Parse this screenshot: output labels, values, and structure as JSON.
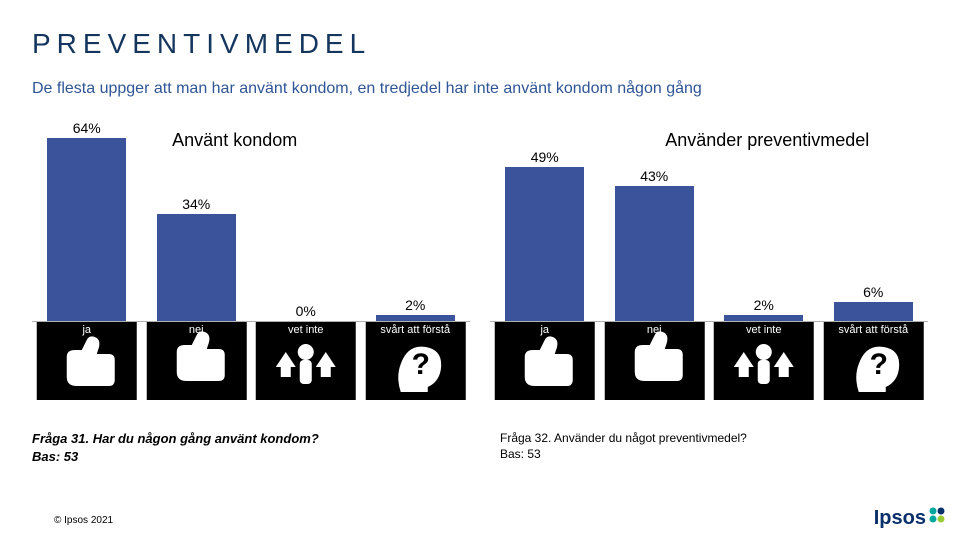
{
  "title_text": "PREVENTIVMEDEL",
  "title_color": "#14365e",
  "subtitle_text": "De flesta uppger att man har använt kondom, en tredjedel har inte använt kondom någon gång",
  "subtitle_color": "#2f5597",
  "baseline_color": "#b0b0b0",
  "chart_max_value": 64,
  "chart_left": {
    "title": "Använt kondom",
    "title_left_pct": 32,
    "type": "bar",
    "bar_color": "#3a539b",
    "categories": [
      "ja",
      "nej",
      "vet inte",
      "svårt att förstå"
    ],
    "values": [
      64,
      34,
      0,
      2
    ],
    "labels": [
      "64%",
      "34%",
      "0%",
      "2%"
    ]
  },
  "chart_right": {
    "title": "Använder preventivmedel",
    "title_left_pct": 40,
    "type": "bar",
    "bar_color": "#3a539b",
    "categories": [
      "ja",
      "nej",
      "vet inte",
      "svårt att förstå"
    ],
    "values": [
      49,
      43,
      2,
      6
    ],
    "labels": [
      "49%",
      "43%",
      "2%",
      "6%"
    ]
  },
  "category_icons": {
    "bg": "#000000",
    "fg": "#ffffff"
  },
  "question_left_line1": "Fråga 31. Har du någon gång använt kondom?",
  "question_left_line2": "Bas: 53",
  "question_right_line1": "Fråga 32. Använder du något preventivmedel?",
  "question_right_line2": "Bas: 53",
  "copyright_text": "© Ipsos 2021",
  "logo_text": "Ipsos",
  "logo_dot_colors": [
    "#00a79d",
    "#0a2f6b",
    "#00a79d",
    "#99cc33"
  ]
}
